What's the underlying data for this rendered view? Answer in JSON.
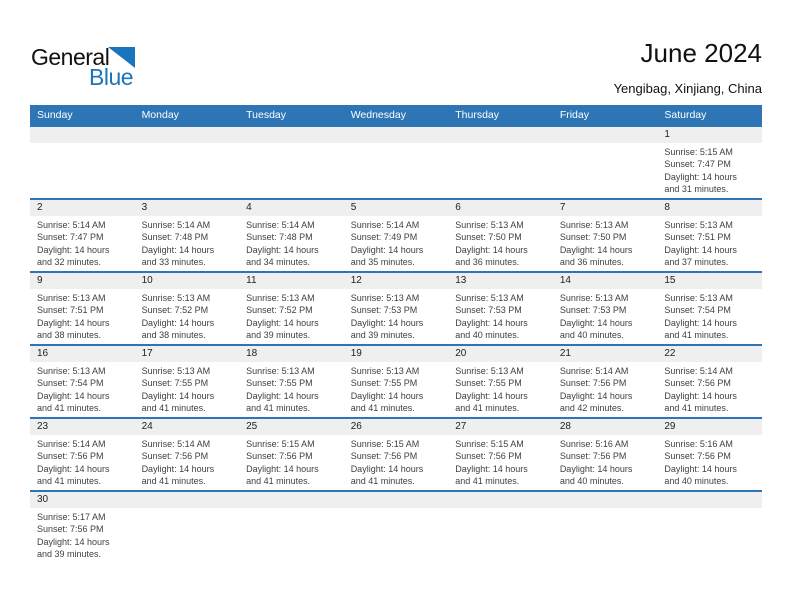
{
  "logo": {
    "text_general": "General",
    "text_blue": "Blue"
  },
  "header": {
    "title": "June 2024",
    "location": "Yengibag, Xinjiang, China"
  },
  "weekday_header": [
    "Sunday",
    "Monday",
    "Tuesday",
    "Wednesday",
    "Thursday",
    "Friday",
    "Saturday"
  ],
  "colors": {
    "header_bg": "#2E75B6",
    "row_divider": "#2E75B6",
    "number_band_bg": "#EFEFEF",
    "logo_blue": "#1B75BC",
    "cell_text": "#3F3F3F"
  },
  "weeks": [
    [
      null,
      null,
      null,
      null,
      null,
      null,
      {
        "day": "1",
        "lines": [
          "Sunrise: 5:15 AM",
          "Sunset: 7:47 PM",
          "Daylight: 14 hours",
          "and 31 minutes."
        ]
      }
    ],
    [
      {
        "day": "2",
        "lines": [
          "Sunrise: 5:14 AM",
          "Sunset: 7:47 PM",
          "Daylight: 14 hours",
          "and 32 minutes."
        ]
      },
      {
        "day": "3",
        "lines": [
          "Sunrise: 5:14 AM",
          "Sunset: 7:48 PM",
          "Daylight: 14 hours",
          "and 33 minutes."
        ]
      },
      {
        "day": "4",
        "lines": [
          "Sunrise: 5:14 AM",
          "Sunset: 7:48 PM",
          "Daylight: 14 hours",
          "and 34 minutes."
        ]
      },
      {
        "day": "5",
        "lines": [
          "Sunrise: 5:14 AM",
          "Sunset: 7:49 PM",
          "Daylight: 14 hours",
          "and 35 minutes."
        ]
      },
      {
        "day": "6",
        "lines": [
          "Sunrise: 5:13 AM",
          "Sunset: 7:50 PM",
          "Daylight: 14 hours",
          "and 36 minutes."
        ]
      },
      {
        "day": "7",
        "lines": [
          "Sunrise: 5:13 AM",
          "Sunset: 7:50 PM",
          "Daylight: 14 hours",
          "and 36 minutes."
        ]
      },
      {
        "day": "8",
        "lines": [
          "Sunrise: 5:13 AM",
          "Sunset: 7:51 PM",
          "Daylight: 14 hours",
          "and 37 minutes."
        ]
      }
    ],
    [
      {
        "day": "9",
        "lines": [
          "Sunrise: 5:13 AM",
          "Sunset: 7:51 PM",
          "Daylight: 14 hours",
          "and 38 minutes."
        ]
      },
      {
        "day": "10",
        "lines": [
          "Sunrise: 5:13 AM",
          "Sunset: 7:52 PM",
          "Daylight: 14 hours",
          "and 38 minutes."
        ]
      },
      {
        "day": "11",
        "lines": [
          "Sunrise: 5:13 AM",
          "Sunset: 7:52 PM",
          "Daylight: 14 hours",
          "and 39 minutes."
        ]
      },
      {
        "day": "12",
        "lines": [
          "Sunrise: 5:13 AM",
          "Sunset: 7:53 PM",
          "Daylight: 14 hours",
          "and 39 minutes."
        ]
      },
      {
        "day": "13",
        "lines": [
          "Sunrise: 5:13 AM",
          "Sunset: 7:53 PM",
          "Daylight: 14 hours",
          "and 40 minutes."
        ]
      },
      {
        "day": "14",
        "lines": [
          "Sunrise: 5:13 AM",
          "Sunset: 7:53 PM",
          "Daylight: 14 hours",
          "and 40 minutes."
        ]
      },
      {
        "day": "15",
        "lines": [
          "Sunrise: 5:13 AM",
          "Sunset: 7:54 PM",
          "Daylight: 14 hours",
          "and 41 minutes."
        ]
      }
    ],
    [
      {
        "day": "16",
        "lines": [
          "Sunrise: 5:13 AM",
          "Sunset: 7:54 PM",
          "Daylight: 14 hours",
          "and 41 minutes."
        ]
      },
      {
        "day": "17",
        "lines": [
          "Sunrise: 5:13 AM",
          "Sunset: 7:55 PM",
          "Daylight: 14 hours",
          "and 41 minutes."
        ]
      },
      {
        "day": "18",
        "lines": [
          "Sunrise: 5:13 AM",
          "Sunset: 7:55 PM",
          "Daylight: 14 hours",
          "and 41 minutes."
        ]
      },
      {
        "day": "19",
        "lines": [
          "Sunrise: 5:13 AM",
          "Sunset: 7:55 PM",
          "Daylight: 14 hours",
          "and 41 minutes."
        ]
      },
      {
        "day": "20",
        "lines": [
          "Sunrise: 5:13 AM",
          "Sunset: 7:55 PM",
          "Daylight: 14 hours",
          "and 41 minutes."
        ]
      },
      {
        "day": "21",
        "lines": [
          "Sunrise: 5:14 AM",
          "Sunset: 7:56 PM",
          "Daylight: 14 hours",
          "and 42 minutes."
        ]
      },
      {
        "day": "22",
        "lines": [
          "Sunrise: 5:14 AM",
          "Sunset: 7:56 PM",
          "Daylight: 14 hours",
          "and 41 minutes."
        ]
      }
    ],
    [
      {
        "day": "23",
        "lines": [
          "Sunrise: 5:14 AM",
          "Sunset: 7:56 PM",
          "Daylight: 14 hours",
          "and 41 minutes."
        ]
      },
      {
        "day": "24",
        "lines": [
          "Sunrise: 5:14 AM",
          "Sunset: 7:56 PM",
          "Daylight: 14 hours",
          "and 41 minutes."
        ]
      },
      {
        "day": "25",
        "lines": [
          "Sunrise: 5:15 AM",
          "Sunset: 7:56 PM",
          "Daylight: 14 hours",
          "and 41 minutes."
        ]
      },
      {
        "day": "26",
        "lines": [
          "Sunrise: 5:15 AM",
          "Sunset: 7:56 PM",
          "Daylight: 14 hours",
          "and 41 minutes."
        ]
      },
      {
        "day": "27",
        "lines": [
          "Sunrise: 5:15 AM",
          "Sunset: 7:56 PM",
          "Daylight: 14 hours",
          "and 41 minutes."
        ]
      },
      {
        "day": "28",
        "lines": [
          "Sunrise: 5:16 AM",
          "Sunset: 7:56 PM",
          "Daylight: 14 hours",
          "and 40 minutes."
        ]
      },
      {
        "day": "29",
        "lines": [
          "Sunrise: 5:16 AM",
          "Sunset: 7:56 PM",
          "Daylight: 14 hours",
          "and 40 minutes."
        ]
      }
    ],
    [
      {
        "day": "30",
        "lines": [
          "Sunrise: 5:17 AM",
          "Sunset: 7:56 PM",
          "Daylight: 14 hours",
          "and 39 minutes."
        ]
      },
      null,
      null,
      null,
      null,
      null,
      null
    ]
  ]
}
